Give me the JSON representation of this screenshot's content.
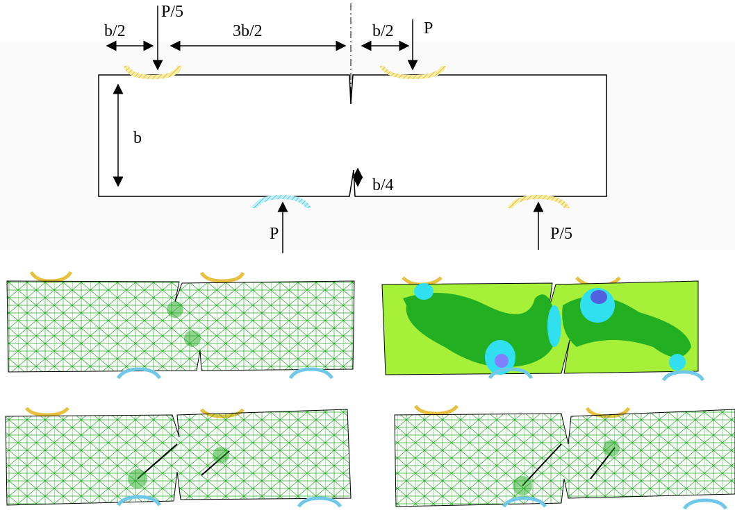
{
  "labels": {
    "left_top_load": "P/5",
    "left_overhang": "b/2",
    "span_to_axis": "3b/2",
    "right_offset": "b/2",
    "right_top_load": "P",
    "height": "b",
    "notch_depth": "b/4",
    "left_bottom_load": "P",
    "right_bottom_load": "P/5"
  }
}
